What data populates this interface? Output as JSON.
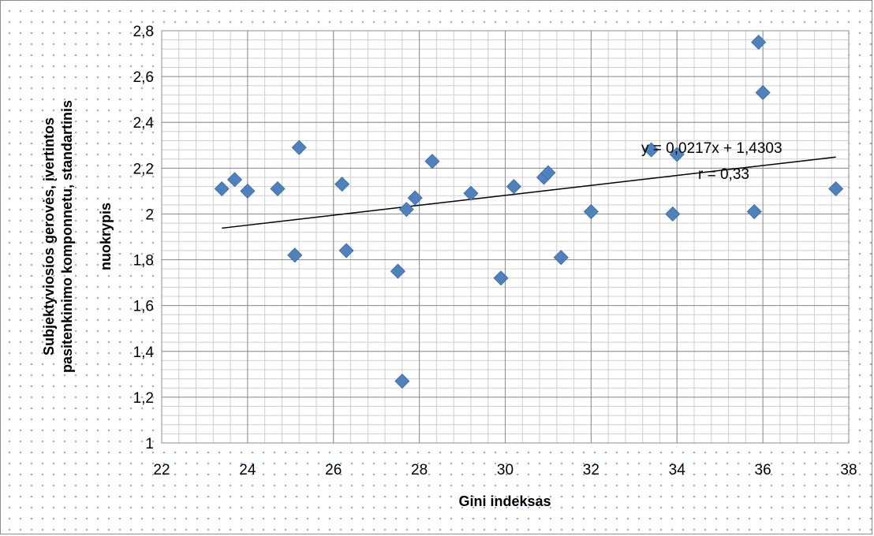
{
  "chart_data": {
    "type": "scatter",
    "title": "",
    "xlabel": "Gini indeksas",
    "ylabel_lines": [
      "Subjektyviosios gerovės, įvertintos",
      "pasitenkinimo komponnetu, standartinis",
      "nuokrypis"
    ],
    "xlim": [
      22,
      38
    ],
    "ylim": [
      1,
      2.8
    ],
    "x_ticks": [
      22,
      24,
      26,
      28,
      30,
      32,
      34,
      36,
      38
    ],
    "y_ticks": [
      1,
      1.2,
      1.4,
      1.6,
      1.8,
      2,
      2.2,
      2.4,
      2.6,
      2.8
    ],
    "x_tick_labels": [
      "22",
      "24",
      "26",
      "28",
      "30",
      "32",
      "34",
      "36",
      "38"
    ],
    "y_tick_labels": [
      "1",
      "1,2",
      "1,4",
      "1,6",
      "1,8",
      "2",
      "2,2",
      "2,4",
      "2,6",
      "2,8"
    ],
    "grid": true,
    "marker_color": "#4f81bd",
    "points": [
      {
        "x": 23.4,
        "y": 2.11
      },
      {
        "x": 23.7,
        "y": 2.15
      },
      {
        "x": 24.0,
        "y": 2.1
      },
      {
        "x": 24.7,
        "y": 2.11
      },
      {
        "x": 25.1,
        "y": 1.82
      },
      {
        "x": 25.2,
        "y": 2.29
      },
      {
        "x": 26.2,
        "y": 2.13
      },
      {
        "x": 26.3,
        "y": 1.84
      },
      {
        "x": 27.5,
        "y": 1.75
      },
      {
        "x": 27.6,
        "y": 1.27
      },
      {
        "x": 27.7,
        "y": 2.02
      },
      {
        "x": 27.9,
        "y": 2.07
      },
      {
        "x": 28.3,
        "y": 2.23
      },
      {
        "x": 29.2,
        "y": 2.09
      },
      {
        "x": 29.9,
        "y": 1.72
      },
      {
        "x": 30.2,
        "y": 2.12
      },
      {
        "x": 30.9,
        "y": 2.16
      },
      {
        "x": 31.0,
        "y": 2.18
      },
      {
        "x": 31.3,
        "y": 1.81
      },
      {
        "x": 32.0,
        "y": 2.01
      },
      {
        "x": 33.4,
        "y": 2.28
      },
      {
        "x": 33.9,
        "y": 2.0
      },
      {
        "x": 34.0,
        "y": 2.26
      },
      {
        "x": 35.8,
        "y": 2.01
      },
      {
        "x": 35.9,
        "y": 2.75
      },
      {
        "x": 36.0,
        "y": 2.53
      },
      {
        "x": 37.7,
        "y": 2.11
      }
    ],
    "trendline": {
      "slope": 0.0217,
      "intercept": 1.4303,
      "x_start": 23.4,
      "x_end": 37.7
    },
    "annotations": {
      "equation": "y = 0,0217x + 1,4303",
      "r": "r = 0,33"
    }
  }
}
